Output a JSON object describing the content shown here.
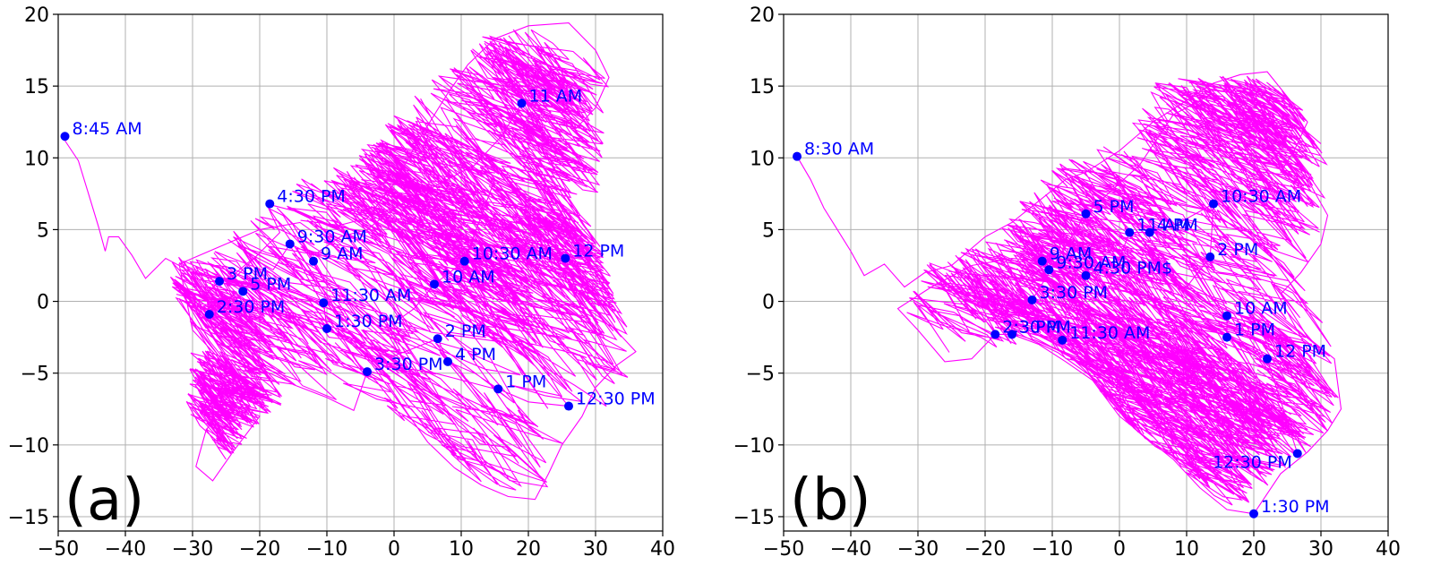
{
  "colors": {
    "trajectory": "#ff00ff",
    "points": "#0000ff",
    "labels": "#0000ff",
    "grid": "#b0b0b0",
    "axes": "#000000"
  },
  "chart_data": [
    {
      "type": "scatter",
      "panel_label": "(a)",
      "xlim": [
        -50,
        40
      ],
      "ylim": [
        -16,
        20
      ],
      "xticks": [
        -50,
        -40,
        -30,
        -20,
        -10,
        0,
        10,
        20,
        30,
        40
      ],
      "yticks": [
        -15,
        -10,
        -5,
        0,
        5,
        10,
        15,
        20
      ],
      "grid": true,
      "points": [
        {
          "label": "8:45 AM",
          "x": -49,
          "y": 11.5
        },
        {
          "label": "11 AM",
          "x": 19,
          "y": 13.8
        },
        {
          "label": "4:30 PM",
          "x": -18.5,
          "y": 6.8
        },
        {
          "label": "9:30 AM",
          "x": -15.5,
          "y": 4.0
        },
        {
          "label": "9 AM",
          "x": -12,
          "y": 2.8
        },
        {
          "label": "10:30 AM",
          "x": 10.5,
          "y": 2.8
        },
        {
          "label": "12 PM",
          "x": 25.5,
          "y": 3.0
        },
        {
          "label": "3 PM",
          "x": -26,
          "y": 1.4
        },
        {
          "label": "5 PM",
          "x": -22.5,
          "y": 0.7
        },
        {
          "label": "10 AM",
          "x": 6,
          "y": 1.2
        },
        {
          "label": "11:30 AM",
          "x": -10.5,
          "y": -0.1
        },
        {
          "label": "2:30 PM",
          "x": -27.5,
          "y": -0.9
        },
        {
          "label": "1:30 PM",
          "x": -10,
          "y": -1.9
        },
        {
          "label": "2 PM",
          "x": 6.5,
          "y": -2.6
        },
        {
          "label": "4 PM",
          "x": 8,
          "y": -4.2
        },
        {
          "label": "3:30 PM",
          "x": -4,
          "y": -4.9
        },
        {
          "label": "1 PM",
          "x": 15.5,
          "y": -6.1
        },
        {
          "label": "12:30 PM",
          "x": 26,
          "y": -7.3
        }
      ],
      "trajectory": [
        [
          -49,
          11.2
        ],
        [
          -47,
          9.8
        ],
        [
          -45.5,
          7.5
        ],
        [
          -44,
          5.2
        ],
        [
          -43,
          3.5
        ],
        [
          -42.5,
          4.5
        ],
        [
          -41,
          4.5
        ],
        [
          -39,
          3.2
        ],
        [
          -37,
          1.6
        ],
        [
          -34,
          3.0
        ],
        [
          -30,
          2.0
        ],
        [
          -24,
          1.5
        ],
        [
          -17,
          4.8
        ],
        [
          -19,
          6.8
        ],
        [
          -14,
          6.2
        ],
        [
          -9,
          5.2
        ],
        [
          -4,
          5.8
        ],
        [
          0,
          8.2
        ],
        [
          4,
          11.5
        ],
        [
          8,
          14.5
        ],
        [
          11,
          16.5
        ],
        [
          15,
          18.3
        ],
        [
          20,
          19.2
        ],
        [
          26,
          19.4
        ],
        [
          30,
          17.5
        ],
        [
          32,
          15.6
        ],
        [
          30,
          13.5
        ],
        [
          27,
          12.0
        ],
        [
          24,
          13.6
        ],
        [
          19,
          13.8
        ],
        [
          16,
          11.5
        ],
        [
          12,
          9.5
        ],
        [
          8,
          8.5
        ],
        [
          4,
          7.5
        ],
        [
          0,
          6.5
        ],
        [
          -4,
          5.0
        ],
        [
          -8,
          4.5
        ],
        [
          -12,
          3.2
        ],
        [
          -15.5,
          4.0
        ],
        [
          -18,
          2.2
        ],
        [
          -21,
          3.0
        ],
        [
          -24,
          1.8
        ],
        [
          -26,
          1.4
        ],
        [
          -28,
          0.5
        ],
        [
          -27.5,
          -0.9
        ],
        [
          -25,
          -2.2
        ],
        [
          -22,
          -3.5
        ],
        [
          -19,
          -4.6
        ],
        [
          -15,
          -5.8
        ],
        [
          -10,
          -6.7
        ],
        [
          -6,
          -7.6
        ],
        [
          -4,
          -4.9
        ],
        [
          -1,
          -5.7
        ],
        [
          2,
          -7.8
        ],
        [
          5,
          -9.8
        ],
        [
          9,
          -11.6
        ],
        [
          13,
          -12.8
        ],
        [
          17,
          -13.6
        ],
        [
          21,
          -13.8
        ],
        [
          23,
          -12.0
        ],
        [
          25,
          -10.0
        ],
        [
          28,
          -8.0
        ],
        [
          30,
          -6.0
        ],
        [
          33,
          -4.5
        ],
        [
          36,
          -3.5
        ],
        [
          33,
          -2.0
        ],
        [
          30,
          -0.5
        ],
        [
          27,
          1.0
        ],
        [
          25.5,
          3.0
        ],
        [
          22,
          5.5
        ],
        [
          19,
          7.5
        ],
        [
          15,
          8.5
        ],
        [
          10.5,
          2.8
        ],
        [
          6,
          1.2
        ],
        [
          3,
          -0.5
        ],
        [
          0,
          -1.5
        ],
        [
          -3,
          -0.5
        ],
        [
          -6,
          0.2
        ],
        [
          -10.5,
          -0.1
        ],
        [
          -10,
          -1.9
        ],
        [
          -5,
          -3.0
        ],
        [
          0,
          -3.8
        ],
        [
          6.5,
          -2.6
        ],
        [
          8,
          -4.2
        ],
        [
          12,
          -5.0
        ],
        [
          15.5,
          -6.1
        ],
        [
          20,
          -7.0
        ],
        [
          26,
          -7.3
        ],
        [
          21,
          -4.5
        ],
        [
          16,
          -2.5
        ],
        [
          10,
          -1.5
        ],
        [
          4,
          0.5
        ],
        [
          -2,
          2.0
        ],
        [
          -8,
          3.5
        ],
        [
          -14,
          5.5
        ],
        [
          -20,
          5.0
        ],
        [
          -25,
          4.0
        ],
        [
          -29,
          3.2
        ],
        [
          -32,
          2.6
        ],
        [
          -30,
          -2.0
        ],
        [
          -26,
          -4.0
        ],
        [
          -22,
          -5.8
        ],
        [
          -25,
          -6.8
        ],
        [
          -28,
          -9.0
        ],
        [
          -29.5,
          -11.5
        ],
        [
          -27,
          -12.5
        ],
        [
          -24,
          -10.5
        ],
        [
          -20,
          -8.0
        ]
      ],
      "scribble_region": [
        [
          -33,
          3
        ],
        [
          -26,
          4
        ],
        [
          -20,
          7
        ],
        [
          -14,
          8.5
        ],
        [
          -6,
          10
        ],
        [
          0,
          13
        ],
        [
          8,
          16.5
        ],
        [
          14,
          18.8
        ],
        [
          26,
          19.4
        ],
        [
          32,
          15.5
        ],
        [
          31,
          9
        ],
        [
          30,
          5
        ],
        [
          36,
          -3.5
        ],
        [
          33,
          -8
        ],
        [
          28,
          -10
        ],
        [
          22,
          -13.8
        ],
        [
          14,
          -13
        ],
        [
          7,
          -10
        ],
        [
          0,
          -8
        ],
        [
          -8,
          -7.5
        ],
        [
          -14,
          -6.2
        ],
        [
          -20,
          -8.5
        ],
        [
          -27,
          -12.5
        ],
        [
          -31,
          -7
        ],
        [
          -30,
          -2
        ],
        [
          -34,
          1.5
        ]
      ]
    },
    {
      "type": "scatter",
      "panel_label": "(b)",
      "xlim": [
        -50,
        40
      ],
      "ylim": [
        -16,
        20
      ],
      "xticks": [
        -50,
        -40,
        -30,
        -20,
        -10,
        0,
        10,
        20,
        30,
        40
      ],
      "yticks": [
        -15,
        -10,
        -5,
        0,
        5,
        10,
        15,
        20
      ],
      "grid": true,
      "points": [
        {
          "label": "8:30 AM",
          "x": -48,
          "y": 10.1
        },
        {
          "label": "10:30 AM",
          "x": 14,
          "y": 6.8
        },
        {
          "label": "5 PM",
          "x": -5,
          "y": 6.1
        },
        {
          "label": "11 AM",
          "x": 1.5,
          "y": 4.8
        },
        {
          "label": "4 PM",
          "x": 4.5,
          "y": 4.8
        },
        {
          "label": "2 PM",
          "x": 13.5,
          "y": 3.1
        },
        {
          "label": "9 AM",
          "x": -11.5,
          "y": 2.8
        },
        {
          "label": "9:30 AM",
          "x": -10.5,
          "y": 2.2
        },
        {
          "label": "4:30 PM$",
          "x": -5,
          "y": 1.8
        },
        {
          "label": "3:30 PM",
          "x": -13,
          "y": 0.1
        },
        {
          "label": "10 AM",
          "x": 16,
          "y": -1.0
        },
        {
          "label": "2:30 PM",
          "x": -18.5,
          "y": -2.3
        },
        {
          "label": "3 PM",
          "x": -16,
          "y": -2.3
        },
        {
          "label": "11:30 AM",
          "x": -8.5,
          "y": -2.7
        },
        {
          "label": "1 PM",
          "x": 16,
          "y": -2.5
        },
        {
          "label": "12 PM",
          "x": 22,
          "y": -4.0
        },
        {
          "label": "12:30 PM",
          "x": 26.5,
          "y": -10.6
        },
        {
          "label": "1:30 PM",
          "x": 20,
          "y": -14.8
        }
      ],
      "trajectory": [
        [
          -48,
          10.1
        ],
        [
          -46,
          8.5
        ],
        [
          -44,
          6.5
        ],
        [
          -42,
          5.0
        ],
        [
          -40,
          3.5
        ],
        [
          -38,
          1.8
        ],
        [
          -35,
          2.6
        ],
        [
          -32,
          1.0
        ],
        [
          -29,
          2.0
        ],
        [
          -25,
          2.5
        ],
        [
          -20,
          4.5
        ],
        [
          -16,
          5.5
        ],
        [
          -12,
          7.0
        ],
        [
          -8,
          8.5
        ],
        [
          -5,
          9.0
        ],
        [
          0,
          10.5
        ],
        [
          5,
          12.5
        ],
        [
          10,
          14.0
        ],
        [
          14,
          15.2
        ],
        [
          18,
          15.8
        ],
        [
          22,
          16.0
        ],
        [
          28,
          12.5
        ],
        [
          26,
          10.5
        ],
        [
          24,
          9.0
        ],
        [
          28,
          8.5
        ],
        [
          31,
          6.0
        ],
        [
          30,
          4.0
        ],
        [
          27,
          2.0
        ],
        [
          24,
          0.5
        ],
        [
          28,
          -2.5
        ],
        [
          32,
          -4.0
        ],
        [
          33,
          -7.5
        ],
        [
          31,
          -9.0
        ],
        [
          28,
          -10.5
        ],
        [
          24,
          -12.0
        ],
        [
          20,
          -14.8
        ],
        [
          16,
          -14.5
        ],
        [
          12,
          -13.0
        ],
        [
          8,
          -11.0
        ],
        [
          4,
          -9.5
        ],
        [
          0,
          -8.0
        ],
        [
          -4,
          -5.5
        ],
        [
          -8,
          -4.2
        ],
        [
          -12,
          -3.0
        ],
        [
          -16,
          -2.3
        ],
        [
          -18.5,
          -2.3
        ],
        [
          -22,
          -4.0
        ],
        [
          -26,
          -4.2
        ],
        [
          -30,
          -2.0
        ],
        [
          -33,
          -0.5
        ],
        [
          -28,
          1.0
        ],
        [
          -22,
          2.5
        ],
        [
          -16,
          3.0
        ],
        [
          -11.5,
          2.8
        ],
        [
          -10.5,
          2.2
        ],
        [
          -5,
          1.8
        ],
        [
          0,
          3.0
        ],
        [
          1.5,
          4.8
        ],
        [
          4.5,
          4.8
        ],
        [
          9,
          5.5
        ],
        [
          14,
          6.8
        ],
        [
          13.5,
          3.1
        ],
        [
          10,
          1.0
        ],
        [
          16,
          -1.0
        ],
        [
          16,
          -2.5
        ],
        [
          22,
          -4.0
        ],
        [
          26.5,
          -10.6
        ],
        [
          20,
          -8.0
        ],
        [
          14,
          -5.0
        ],
        [
          8,
          -3.5
        ],
        [
          0,
          -2.0
        ],
        [
          -8.5,
          -2.7
        ],
        [
          -13,
          0.1
        ],
        [
          -5,
          6.1
        ],
        [
          3,
          9.5
        ],
        [
          8,
          13.0
        ],
        [
          14,
          14.5
        ]
      ],
      "scribble_region": [
        [
          -33,
          2
        ],
        [
          -26,
          3
        ],
        [
          -18,
          5
        ],
        [
          -12,
          9
        ],
        [
          -5,
          10.5
        ],
        [
          2,
          12.5
        ],
        [
          6,
          16
        ],
        [
          14,
          15.8
        ],
        [
          22,
          16
        ],
        [
          28,
          13
        ],
        [
          31,
          10
        ],
        [
          31,
          6
        ],
        [
          28,
          1
        ],
        [
          32,
          -3
        ],
        [
          33,
          -8
        ],
        [
          28,
          -10.5
        ],
        [
          24,
          -12
        ],
        [
          20,
          -14.8
        ],
        [
          14,
          -14
        ],
        [
          7,
          -11
        ],
        [
          0,
          -8
        ],
        [
          -6,
          -4.5
        ],
        [
          -13,
          -3
        ],
        [
          -20,
          -3.5
        ],
        [
          -26,
          -4.2
        ],
        [
          -33,
          -0.5
        ]
      ]
    }
  ]
}
